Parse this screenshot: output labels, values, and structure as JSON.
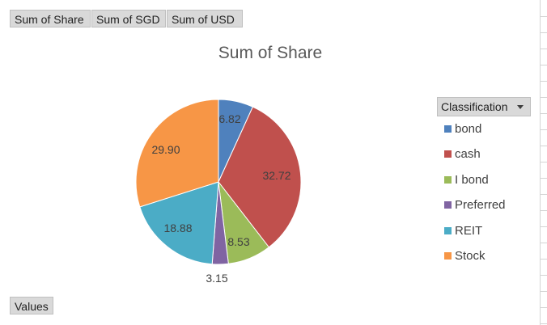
{
  "toolbar": {
    "fields": [
      "Sum of Share",
      "Sum of SGD",
      "Sum of USD"
    ],
    "values_label": "Values"
  },
  "legend": {
    "header": "Classification"
  },
  "chart_data": {
    "type": "pie",
    "title": "Sum of Share",
    "categories": [
      "bond",
      "cash",
      "I bond",
      "Preferred",
      "REIT",
      "Stock"
    ],
    "values": [
      6.82,
      32.72,
      8.53,
      3.15,
      18.88,
      29.9
    ],
    "data_labels": [
      "6.82",
      "32.72",
      "8.53",
      "3.15",
      "18.88",
      "29.90"
    ],
    "colors": [
      "#4f81bd",
      "#c0504d",
      "#9bbb59",
      "#8064a2",
      "#4bacc6",
      "#f79646"
    ],
    "legend_position": "right",
    "start_angle": "top, clockwise"
  }
}
